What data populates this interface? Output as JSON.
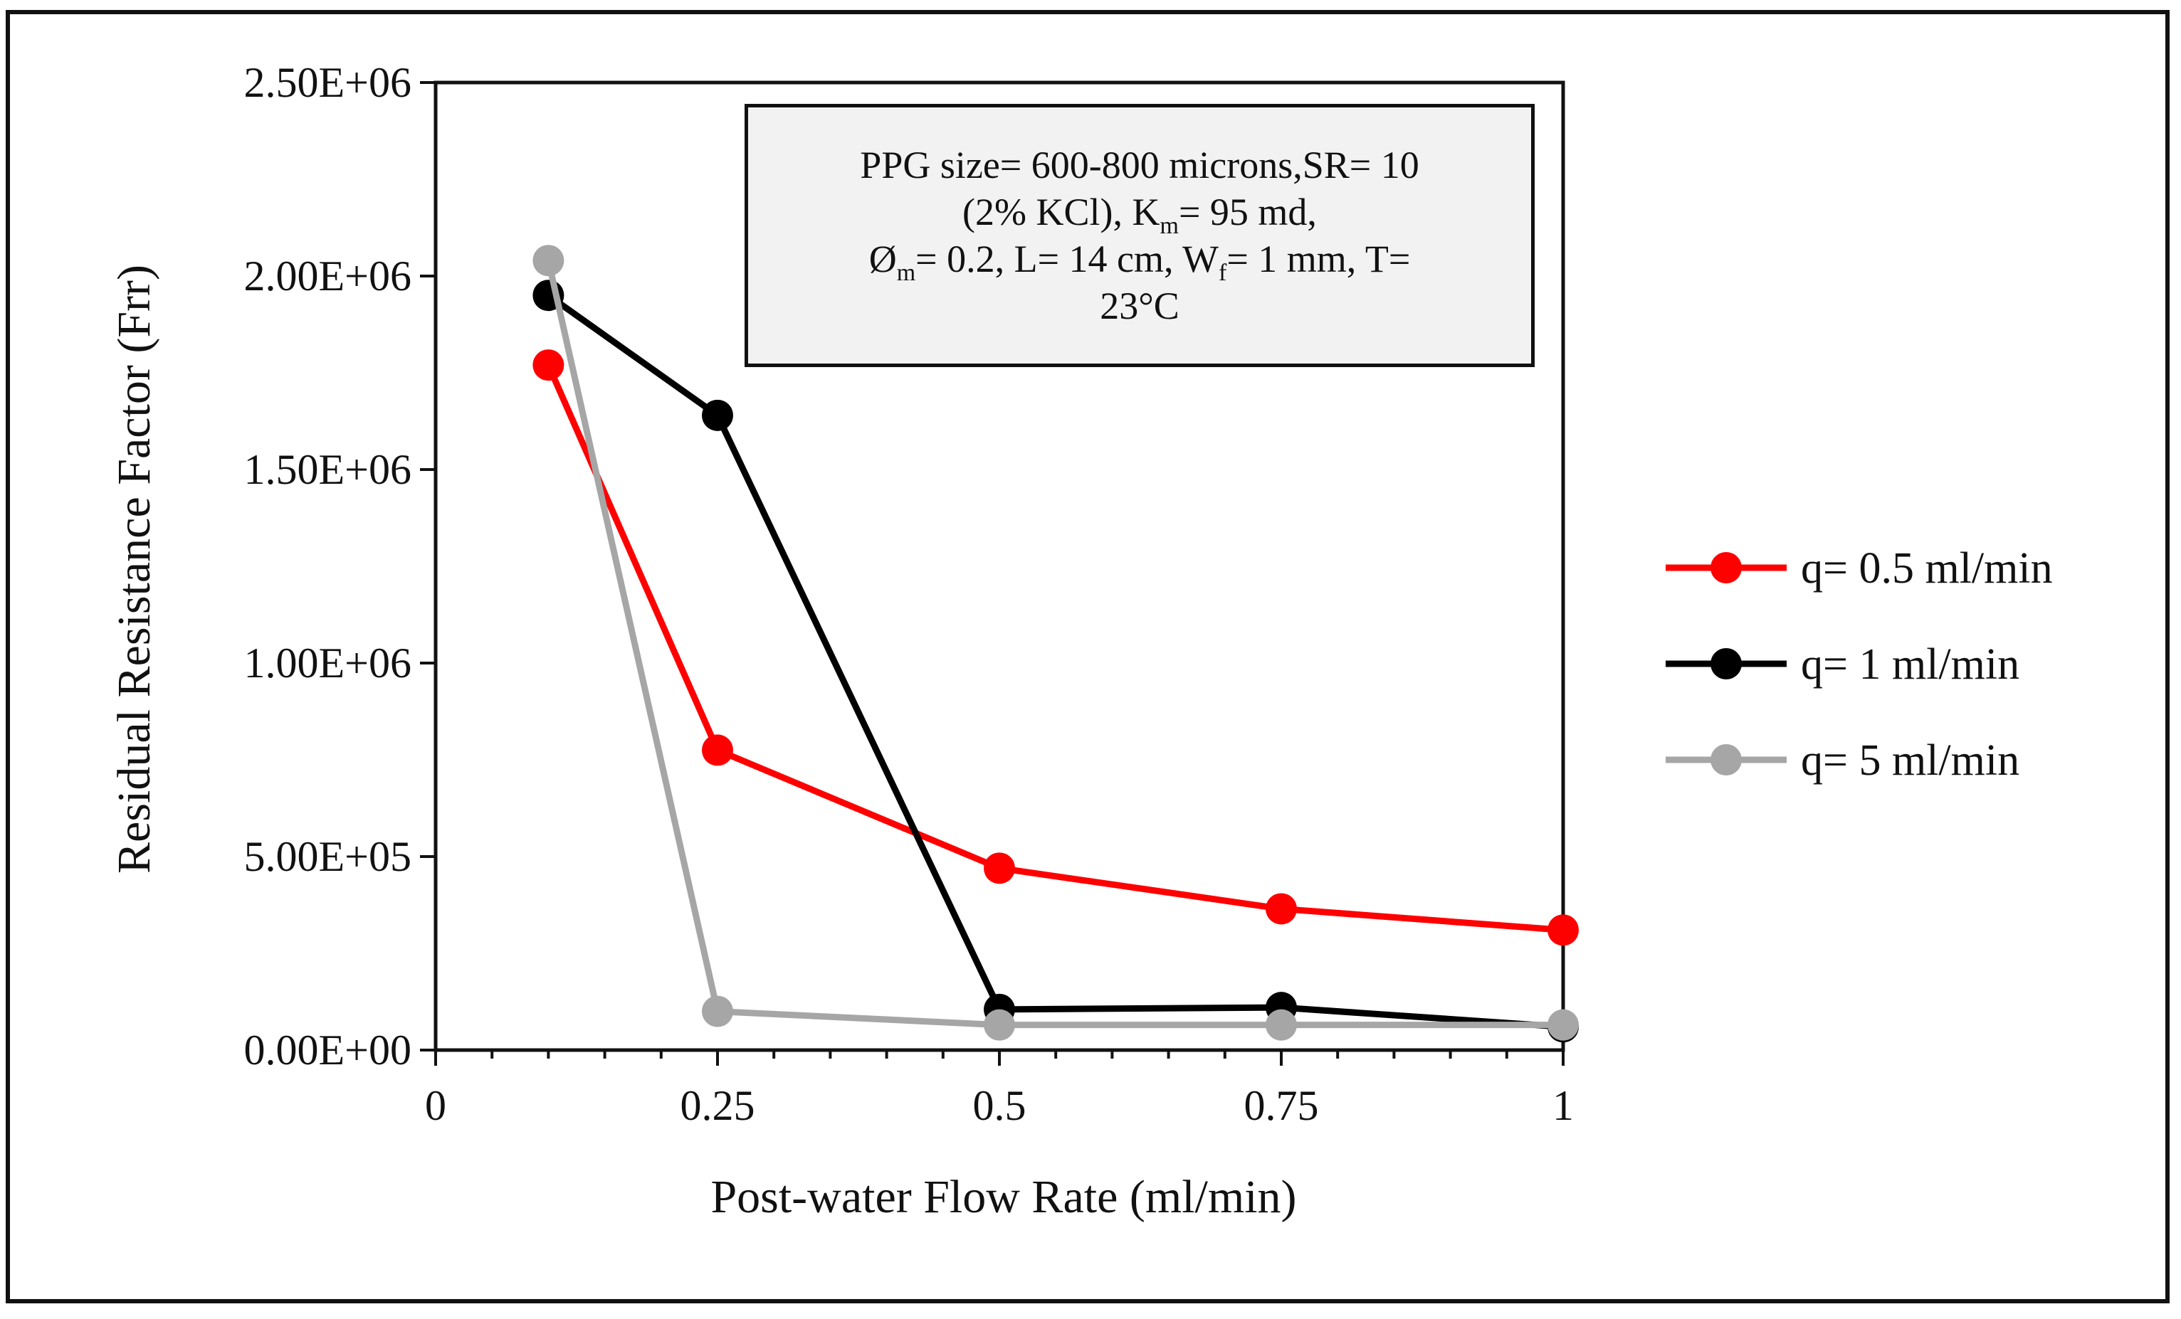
{
  "chart_data": {
    "type": "line",
    "xlabel": "Post-water Flow Rate (ml/min)",
    "ylabel": "Residual Resistance Factor (Frr)",
    "xlim": [
      0,
      1
    ],
    "ylim": [
      0,
      2500000
    ],
    "x_ticks": [
      0,
      0.25,
      0.5,
      0.75,
      1
    ],
    "x_tick_labels": [
      "0",
      "0.25",
      "0.5",
      "0.75",
      "1"
    ],
    "y_ticks": [
      0,
      500000,
      1000000,
      1500000,
      2000000,
      2500000
    ],
    "y_tick_labels": [
      "0.00E+00",
      "5.00E+05",
      "1.00E+06",
      "1.50E+06",
      "2.00E+06",
      "2.50E+06"
    ],
    "grid": false,
    "legend_position": "right",
    "x": [
      0.1,
      0.25,
      0.5,
      0.75,
      1
    ],
    "series": [
      {
        "name": "q= 0.5 ml/min",
        "color": "#ff0000",
        "values": [
          1770000,
          775000,
          470000,
          365000,
          310000
        ]
      },
      {
        "name": "q= 1 ml/min",
        "color": "#000000",
        "values": [
          1950000,
          1640000,
          105000,
          110000,
          60000
        ]
      },
      {
        "name": "q= 5 ml/min",
        "color": "#a6a6a6",
        "values": [
          2040000,
          100000,
          65000,
          65000,
          65000
        ]
      }
    ],
    "annotation": {
      "line1": "PPG size= 600-800 microns,SR= 10",
      "line2_a": "(2% KCl), K",
      "line2_sub": "m",
      "line2_b": "= 95 md,",
      "line3_a": "Ø",
      "line3_sub1": "m",
      "line3_b": "= 0.2, L= 14 cm, W",
      "line3_sub2": "f",
      "line3_c": "= 1 mm, T=",
      "line4": "23°C"
    }
  }
}
